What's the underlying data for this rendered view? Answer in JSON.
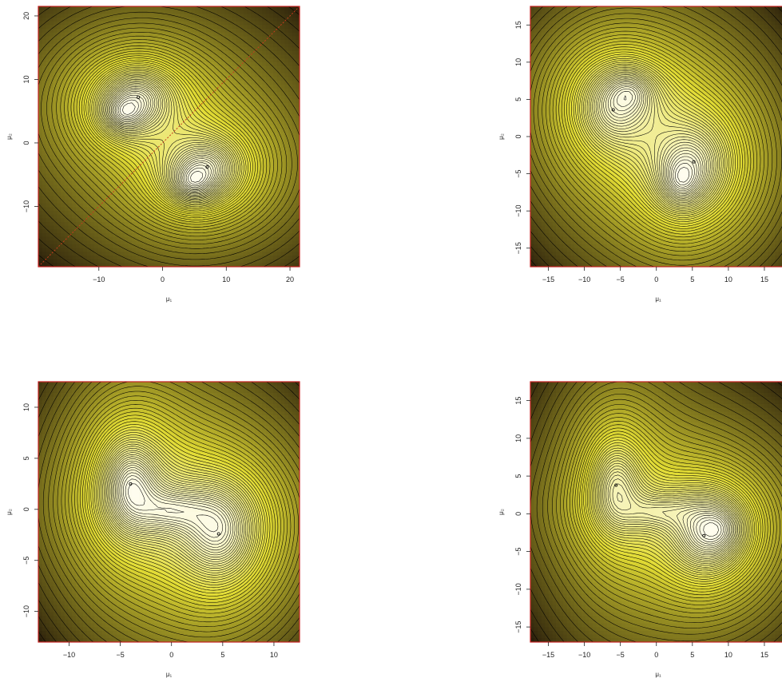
{
  "chart_data": [
    {
      "type": "contour",
      "panel": "top-left",
      "xlabel": "μ₁",
      "ylabel": "μ₂",
      "xlim": [
        -19.5,
        21.5
      ],
      "ylim": [
        -19.5,
        21.5
      ],
      "xticks": [
        -10,
        0,
        10,
        20
      ],
      "yticks": [
        -10,
        0,
        10,
        20
      ],
      "diagonal_line": true,
      "modes": [
        {
          "x": -3.8,
          "y": 7.2,
          "height": 1.0,
          "sx": 2.4,
          "sy": 2.0
        },
        {
          "x": -6.2,
          "y": 4.6,
          "height": 0.7,
          "sx": 1.4,
          "sy": 1.2
        },
        {
          "x": 7.0,
          "y": -3.8,
          "height": 1.0,
          "sx": 2.4,
          "sy": 2.0
        },
        {
          "x": 4.6,
          "y": -6.3,
          "height": 0.7,
          "sx": 1.4,
          "sy": 1.2
        }
      ]
    },
    {
      "type": "contour",
      "panel": "top-right",
      "xlabel": "μ₁",
      "ylabel": "μ₂",
      "xlim": [
        -17.5,
        18
      ],
      "ylim": [
        -17.5,
        17.5
      ],
      "xticks": [
        -15,
        -10,
        -5,
        0,
        5,
        10,
        15
      ],
      "yticks": [
        -15,
        -10,
        -5,
        0,
        5,
        10,
        15
      ],
      "diagonal_line": false,
      "modes": [
        {
          "x": -6.0,
          "y": 3.6,
          "height": 1.0,
          "sx": 2.2,
          "sy": 2.4
        },
        {
          "x": -3.6,
          "y": 6.0,
          "height": 0.6,
          "sx": 1.4,
          "sy": 1.2
        },
        {
          "x": 5.2,
          "y": -3.4,
          "height": 1.0,
          "sx": 2.4,
          "sy": 2.6
        },
        {
          "x": 3.4,
          "y": -6.1,
          "height": 0.7,
          "sx": 1.2,
          "sy": 1.4
        }
      ]
    },
    {
      "type": "contour",
      "panel": "bottom-left",
      "xlabel": "μ₁",
      "ylabel": "μ₂",
      "xlim": [
        -13,
        12.5
      ],
      "ylim": [
        -13,
        12.5
      ],
      "xticks": [
        -10,
        -5,
        0,
        5,
        10
      ],
      "yticks": [
        -10,
        -5,
        0,
        5,
        10
      ],
      "diagonal_line": false,
      "modes": [
        {
          "x": -4.0,
          "y": 2.5,
          "height": 1.0,
          "sx": 1.2,
          "sy": 1.9
        },
        {
          "x": 4.6,
          "y": -2.4,
          "height": 1.0,
          "sx": 1.6,
          "sy": 2.0
        },
        {
          "x": 0.1,
          "y": -0.1,
          "height": 0.55,
          "sx": 1.6,
          "sy": 0.9
        }
      ]
    },
    {
      "type": "contour",
      "panel": "bottom-right",
      "xlabel": "μ₁",
      "ylabel": "μ₂",
      "xlim": [
        -17.5,
        18
      ],
      "ylim": [
        -17,
        17.5
      ],
      "xticks": [
        -15,
        -10,
        -5,
        0,
        5,
        10,
        15
      ],
      "yticks": [
        -15,
        -10,
        -5,
        0,
        5,
        10,
        15
      ],
      "diagonal_line": false,
      "modes": [
        {
          "x": -5.6,
          "y": 3.8,
          "height": 1.0,
          "sx": 1.5,
          "sy": 2.6
        },
        {
          "x": 6.6,
          "y": -2.9,
          "height": 1.0,
          "sx": 2.1,
          "sy": 2.3
        },
        {
          "x": 9.0,
          "y": -2.0,
          "height": 0.6,
          "sx": 1.4,
          "sy": 1.4
        },
        {
          "x": 0.2,
          "y": 0.3,
          "height": 0.55,
          "sx": 2.2,
          "sy": 1.0
        }
      ]
    }
  ],
  "colors": {
    "low": "#1e1208",
    "mid": "#e2dc34",
    "high": "#fffdf0",
    "contour": "#000000",
    "frame": "#c42020",
    "diagonal": "#c43c1e"
  }
}
